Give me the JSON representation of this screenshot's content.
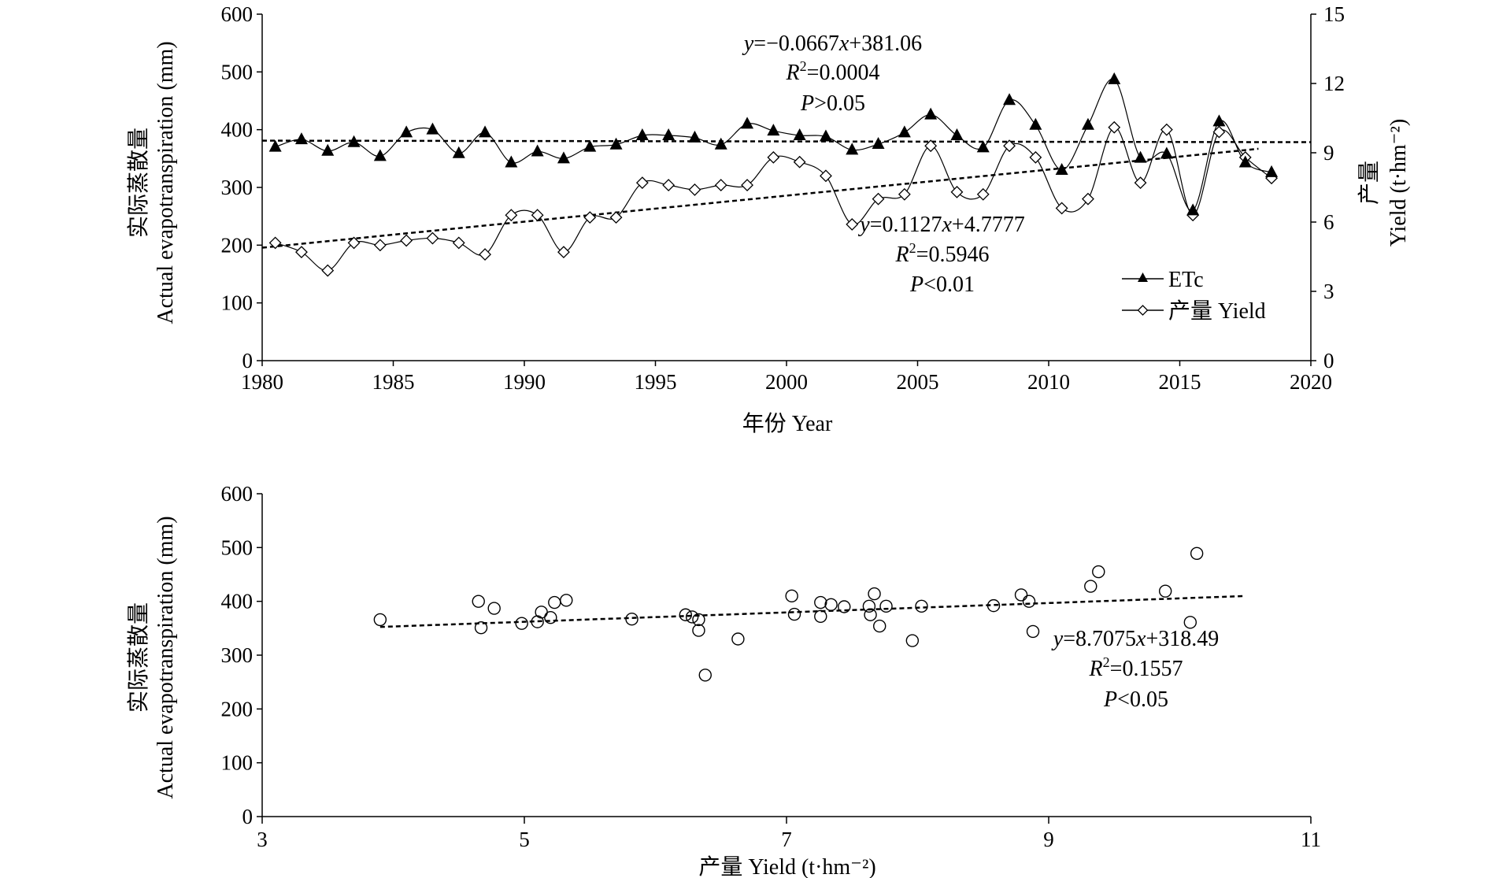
{
  "chart_data": [
    {
      "type": "line",
      "x": [
        1980,
        1981,
        1982,
        1983,
        1984,
        1985,
        1986,
        1987,
        1988,
        1989,
        1990,
        1991,
        1992,
        1993,
        1994,
        1995,
        1996,
        1997,
        1998,
        1999,
        2000,
        2001,
        2002,
        2003,
        2004,
        2005,
        2006,
        2007,
        2008,
        2009,
        2010,
        2011,
        2012,
        2013,
        2014,
        2015,
        2016,
        2017,
        2018
      ],
      "series": [
        {
          "name": "ETc",
          "axis": "left",
          "marker": "filled-triangle",
          "values": [
            370,
            383,
            363,
            378,
            354,
            395,
            400,
            359,
            395,
            343,
            362,
            350,
            370,
            374,
            390,
            390,
            386,
            374,
            410,
            398,
            390,
            388,
            365,
            375,
            395,
            426,
            390,
            369,
            451,
            408,
            330,
            408,
            487,
            351,
            358,
            260,
            414,
            343,
            326
          ]
        },
        {
          "name": "产量 Yield",
          "axis": "right",
          "marker": "hollow-diamond",
          "values": [
            5.1,
            4.7,
            3.9,
            5.1,
            5.0,
            5.2,
            5.3,
            5.1,
            4.6,
            6.3,
            6.3,
            4.7,
            6.2,
            6.2,
            7.7,
            7.6,
            7.4,
            7.6,
            7.6,
            8.8,
            8.6,
            8.0,
            5.9,
            7.0,
            7.2,
            9.3,
            7.3,
            7.2,
            9.3,
            8.8,
            6.6,
            7.0,
            10.1,
            7.7,
            10.0,
            6.3,
            9.9,
            8.8,
            7.9
          ]
        }
      ],
      "trendlines": [
        {
          "axis": "left",
          "slope": -0.0667,
          "intercept": 381.06,
          "x_from": 1980,
          "x_to": 2020
        },
        {
          "axis": "right",
          "slope": 0.1127,
          "intercept": 4.7777,
          "x_from": 1980,
          "x_to": 2018
        }
      ],
      "annotations": [
        {
          "lines": [
            "y=−0.0667x+381.06",
            "R2=0.0004",
            "P>0.05"
          ]
        },
        {
          "lines": [
            "y=0.1127x+4.7777",
            "R2=0.5946",
            "P<0.01"
          ]
        }
      ],
      "xlabel": "年份 Year",
      "ylabel_cn": "实际蒸散量",
      "ylabel_en": "Actual evapotranspiration (mm)",
      "y2label_cn": "产量",
      "y2label_en": "Yield (t·hm⁻²)",
      "xlim": [
        1980,
        2020
      ],
      "xticks": [
        "1980",
        "1985",
        "1990",
        "1995",
        "2000",
        "2005",
        "2010",
        "2015",
        "2020"
      ],
      "ylim": [
        0,
        600
      ],
      "yticks": [
        "0",
        "100",
        "200",
        "300",
        "400",
        "500",
        "600"
      ],
      "y2lim": [
        0,
        15
      ],
      "y2ticks": [
        "0",
        "3",
        "6",
        "9",
        "12",
        "15"
      ],
      "legend_position": "bottom-right",
      "grid": false
    },
    {
      "type": "scatter",
      "points": [
        [
          3.9,
          366
        ],
        [
          4.65,
          400
        ],
        [
          4.67,
          351
        ],
        [
          4.77,
          387
        ],
        [
          4.98,
          359
        ],
        [
          5.1,
          362
        ],
        [
          5.13,
          380
        ],
        [
          5.2,
          370
        ],
        [
          5.23,
          398
        ],
        [
          5.32,
          402
        ],
        [
          5.82,
          367
        ],
        [
          6.23,
          375
        ],
        [
          6.28,
          371
        ],
        [
          6.33,
          366
        ],
        [
          6.33,
          346
        ],
        [
          6.38,
          263
        ],
        [
          6.63,
          330
        ],
        [
          7.04,
          410
        ],
        [
          7.06,
          376
        ],
        [
          7.26,
          398
        ],
        [
          7.26,
          372
        ],
        [
          7.34,
          394
        ],
        [
          7.44,
          390
        ],
        [
          7.63,
          391
        ],
        [
          7.64,
          375
        ],
        [
          7.67,
          414
        ],
        [
          7.71,
          354
        ],
        [
          7.76,
          391
        ],
        [
          7.96,
          327
        ],
        [
          8.03,
          391
        ],
        [
          8.58,
          392
        ],
        [
          8.79,
          412
        ],
        [
          8.85,
          400
        ],
        [
          8.88,
          344
        ],
        [
          9.32,
          428
        ],
        [
          9.38,
          455
        ],
        [
          9.89,
          419
        ],
        [
          10.08,
          361
        ],
        [
          10.13,
          489
        ]
      ],
      "trendline": {
        "slope": 8.7075,
        "intercept": 318.49,
        "x_from": 3.9,
        "x_to": 10.5
      },
      "annotation": {
        "lines": [
          "y=8.7075x+318.49",
          "R2=0.1557",
          "P<0.05"
        ]
      },
      "xlabel": "产量 Yield (t·hm⁻²)",
      "ylabel_cn": "实际蒸散量",
      "ylabel_en": "Actual evapotranspiration (mm)",
      "xlim": [
        3,
        11
      ],
      "xticks": [
        "3",
        "5",
        "7",
        "9",
        "11"
      ],
      "ylim": [
        0,
        600
      ],
      "yticks": [
        "0",
        "100",
        "200",
        "300",
        "400",
        "500",
        "600"
      ],
      "grid": false
    }
  ]
}
